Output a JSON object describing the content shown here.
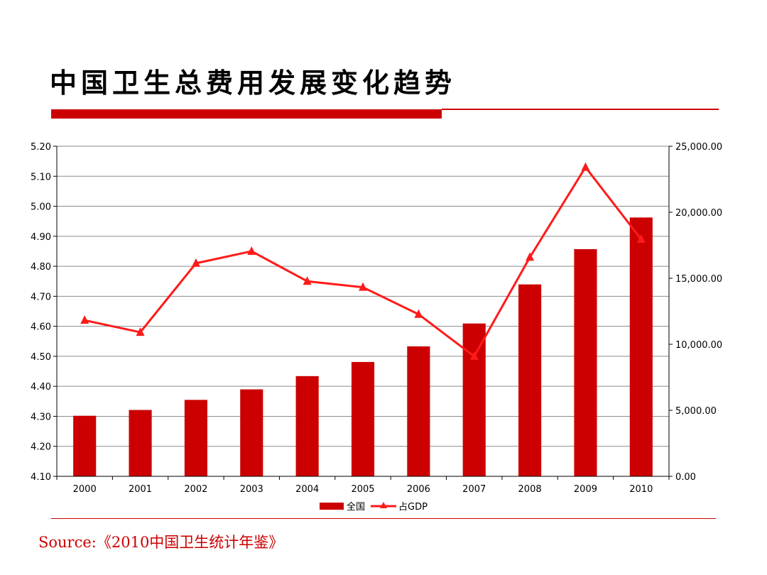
{
  "title": "中国卫生总费用发展变化趋势",
  "source": "Source:《2010中国卫生统计年鉴》",
  "colors": {
    "accent": "#cc0000",
    "bar": "#cc0000",
    "line": "#ff1a1a"
  },
  "chart_data": {
    "type": "bar",
    "categories": [
      "2000",
      "2001",
      "2002",
      "2003",
      "2004",
      "2005",
      "2006",
      "2007",
      "2008",
      "2009",
      "2010"
    ],
    "series": [
      {
        "name": "全国",
        "type": "bar",
        "axis": "right",
        "values": [
          4586.6,
          5025.9,
          5790.0,
          6584.1,
          7590.3,
          8659.9,
          9843.3,
          11573.97,
          14535.4,
          17204.81,
          19603.0
        ]
      },
      {
        "name": "占GDP",
        "type": "line",
        "axis": "left",
        "marker": "triangle",
        "values": [
          4.62,
          4.58,
          4.81,
          4.85,
          4.75,
          4.73,
          4.64,
          4.5,
          4.83,
          5.13,
          4.89
        ]
      }
    ],
    "y_left": {
      "min": 4.1,
      "max": 5.2,
      "ticks": [
        "5.20",
        "5.10",
        "5.00",
        "4.90",
        "4.80",
        "4.70",
        "4.60",
        "4.50",
        "4.40",
        "4.30",
        "4.20",
        "4.10"
      ]
    },
    "y_right": {
      "min": 0,
      "max": 25000,
      "ticks": [
        "25,000.00",
        "20,000.00",
        "15,000.00",
        "10,000.00",
        "5,000.00",
        "0.00"
      ]
    },
    "grid": true,
    "legend_position": "bottom"
  }
}
